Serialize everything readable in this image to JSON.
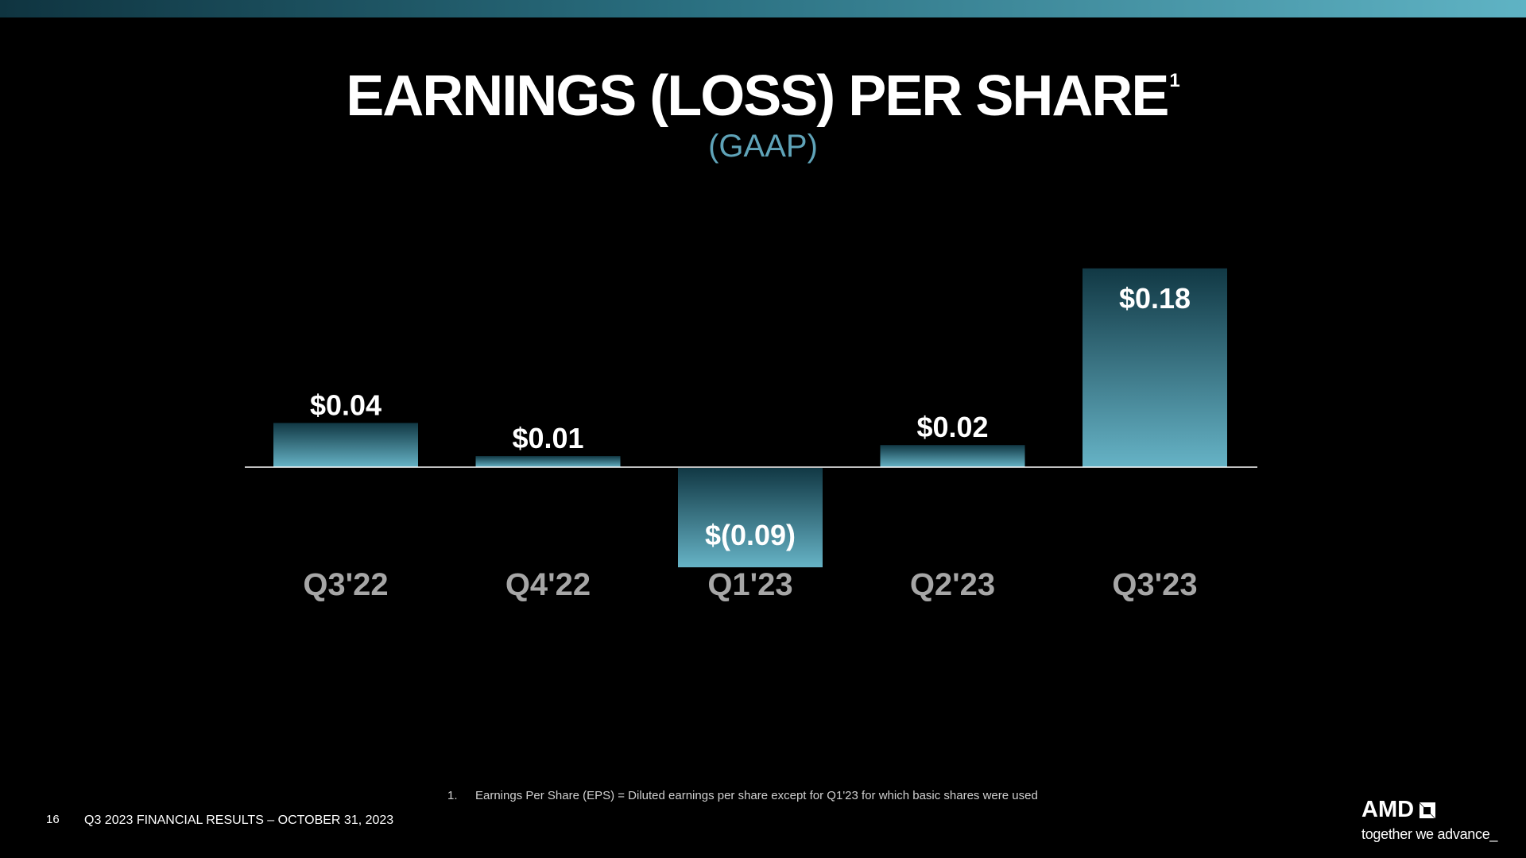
{
  "header": {
    "title": "EARNINGS (LOSS) PER SHARE",
    "title_superscript": "1",
    "subtitle": "(GAAP)"
  },
  "chart_data": {
    "type": "bar",
    "categories": [
      "Q3'22",
      "Q4'22",
      "Q1'23",
      "Q2'23",
      "Q3'23"
    ],
    "values": [
      0.04,
      0.01,
      -0.09,
      0.02,
      0.18
    ],
    "labels": [
      "$0.04",
      "$0.01",
      "$(0.09)",
      "$0.02",
      "$0.18"
    ],
    "colors": {
      "bar_light": "#66b3c6",
      "bar_dark": "#113844",
      "baseline": "#ffffff",
      "label": "#ffffff",
      "category": "#a6a6a6"
    }
  },
  "footnote": {
    "number": "1.",
    "text": "Earnings Per Share (EPS) = Diluted earnings per share except for Q1'23 for which basic shares were used"
  },
  "footer": {
    "page_number": "16",
    "text": "Q3 2023 FINANCIAL RESULTS – OCTOBER 31, 2023"
  },
  "logo": {
    "wordmark": "AMD",
    "tagline": "together we advance_",
    "icon": "amd-arrow-icon"
  }
}
